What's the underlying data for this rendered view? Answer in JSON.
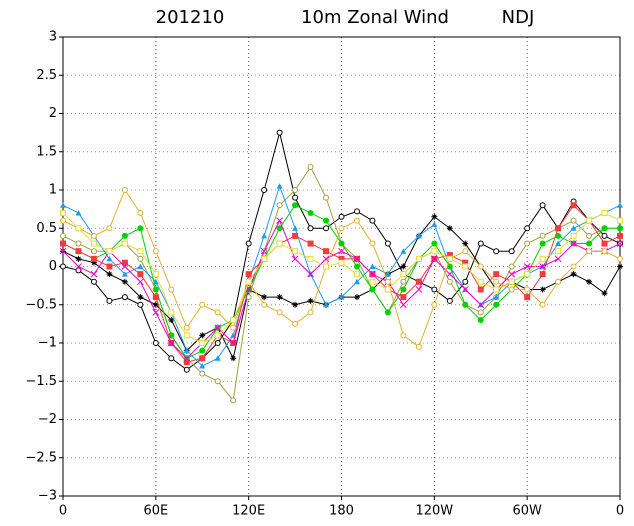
{
  "chart_data": {
    "type": "line",
    "title": "201210",
    "subtitle": "10m Zonal Wind",
    "season": "NDJ",
    "grid": true,
    "x": [
      0,
      10,
      20,
      30,
      40,
      50,
      60,
      70,
      80,
      90,
      100,
      110,
      120,
      130,
      140,
      150,
      160,
      170,
      180,
      190,
      200,
      210,
      220,
      230,
      240,
      250,
      260,
      270,
      280,
      290,
      300,
      310,
      320,
      330,
      340,
      350,
      360
    ],
    "xlim": [
      0,
      360
    ],
    "xticks": [
      0,
      {
        "value": 60,
        "label": "60E"
      },
      {
        "value": 120,
        "label": "120E"
      },
      180,
      {
        "value": 240,
        "label": "120W"
      },
      {
        "value": 300,
        "label": "60W"
      },
      {
        "value": 360,
        "label": "0"
      }
    ],
    "ylim": [
      -3,
      3
    ],
    "yticks": [
      {
        "value": -3,
        "label": "−3"
      },
      {
        "value": -2.5,
        "label": "−2.5"
      },
      {
        "value": -2,
        "label": "−2"
      },
      {
        "value": -1.5,
        "label": "−1.5"
      },
      {
        "value": -1,
        "label": "−1"
      },
      {
        "value": -0.5,
        "label": "−0.5"
      },
      0,
      0.5,
      1,
      1.5,
      2,
      2.5,
      3
    ],
    "series": [
      {
        "color": "#000000",
        "marker": "circle-open",
        "values": [
          0,
          -0.05,
          -0.2,
          -0.45,
          -0.4,
          -0.5,
          -1.0,
          -1.2,
          -1.35,
          -1.2,
          -1.0,
          -0.7,
          0.3,
          1.0,
          1.75,
          0.9,
          0.5,
          0.5,
          0.65,
          0.72,
          0.6,
          0.3,
          -0.1,
          -0.2,
          -0.3,
          -0.45,
          -0.2,
          0.3,
          0.2,
          0.2,
          0.5,
          0.8,
          0.5,
          0.85,
          0.6,
          0.4,
          0.3
        ]
      },
      {
        "color": "#000000",
        "marker": "star",
        "values": [
          0.2,
          0.1,
          0.05,
          -0.1,
          -0.2,
          -0.4,
          -0.5,
          -0.7,
          -1.1,
          -0.9,
          -0.8,
          -1.2,
          -0.3,
          -0.4,
          -0.4,
          -0.5,
          -0.45,
          -0.5,
          -0.4,
          -0.4,
          -0.3,
          -0.1,
          0,
          0.4,
          0.65,
          0.5,
          0.3,
          0,
          -0.3,
          -0.2,
          -0.3,
          -0.3,
          -0.2,
          -0.1,
          -0.2,
          -0.35,
          0
        ]
      },
      {
        "color": "#a0a040",
        "marker": "circle-open",
        "values": [
          0.4,
          0.3,
          0.2,
          0.2,
          0.3,
          0.1,
          -0.3,
          -0.9,
          -1.2,
          -1.4,
          -1.5,
          -1.75,
          -0.4,
          0.2,
          0.8,
          1.0,
          1.3,
          0.9,
          0.3,
          0.1,
          -0.3,
          -0.6,
          -0.2,
          0.1,
          0.2,
          -0.2,
          -0.5,
          -0.6,
          -0.4,
          0,
          0.3,
          0.4,
          0.5,
          0.6,
          0.4,
          0.5,
          0.5
        ]
      },
      {
        "color": "#1e9bf0",
        "marker": "triangle",
        "values": [
          0.8,
          0.7,
          0.4,
          0.1,
          -0.1,
          0,
          -0.2,
          -0.6,
          -1.1,
          -1.3,
          -1.2,
          -0.9,
          -0.2,
          0.4,
          1.05,
          0.5,
          -0.1,
          -0.5,
          -0.4,
          -0.2,
          0,
          -0.1,
          0.2,
          0.4,
          0.55,
          0,
          -0.3,
          -0.5,
          -0.4,
          -0.2,
          -0.1,
          0,
          0.3,
          0.5,
          0.6,
          0.7,
          0.8
        ]
      },
      {
        "color": "#00d200",
        "marker": "circle-filled",
        "values": [
          0.3,
          0.2,
          0.1,
          0.2,
          0.4,
          0.5,
          -0.3,
          -0.9,
          -1.2,
          -1.1,
          -0.8,
          -0.7,
          -0.3,
          0.1,
          0.5,
          0.8,
          0.7,
          0.6,
          0.3,
          0,
          -0.3,
          -0.6,
          -0.3,
          0.1,
          0.3,
          0,
          -0.5,
          -0.7,
          -0.5,
          -0.3,
          -0.1,
          0.3,
          0.4,
          0.3,
          0.3,
          0.5,
          0.5
        ]
      },
      {
        "color": "#f03c3c",
        "marker": "square-filled",
        "values": [
          0.3,
          0.2,
          0.1,
          0,
          0.05,
          -0.1,
          -0.4,
          -1.0,
          -1.25,
          -1.2,
          -0.9,
          -1.0,
          -0.1,
          0.1,
          0.3,
          0.4,
          0.3,
          0.2,
          0.1,
          0.1,
          -0.1,
          -0.3,
          -0.4,
          -0.2,
          0.1,
          0.15,
          0.05,
          -0.3,
          -0.1,
          -0.2,
          -0.4,
          -0.1,
          0.5,
          0.8,
          0.6,
          0.3,
          0.4
        ]
      },
      {
        "color": "#f000c8",
        "marker": "cross",
        "values": [
          0.2,
          0,
          -0.1,
          0.2,
          0,
          -0.2,
          -0.6,
          -1.0,
          -1.2,
          -1.0,
          -0.8,
          -1.0,
          -0.3,
          0.2,
          0.6,
          0.1,
          -0.1,
          0.1,
          0.2,
          0.1,
          -0.1,
          -0.2,
          -0.5,
          -0.3,
          0.1,
          -0.1,
          -0.3,
          -0.5,
          -0.3,
          -0.1,
          0,
          0,
          0.1,
          0.3,
          0.2,
          0.2,
          0.3
        ]
      },
      {
        "color": "#e6af2d",
        "marker": "circle-open",
        "values": [
          0.6,
          0.5,
          0.4,
          0.5,
          1.0,
          0.7,
          0.2,
          -0.3,
          -0.8,
          -0.5,
          -0.6,
          -0.8,
          -0.2,
          -0.5,
          -0.6,
          -0.75,
          -0.6,
          0,
          0.5,
          0.6,
          0.3,
          -0.2,
          -0.9,
          -1.05,
          -0.5,
          0.1,
          0.2,
          0,
          -0.2,
          -0.3,
          -0.3,
          -0.5,
          -0.2,
          0,
          0.2,
          0.2,
          0.1
        ]
      },
      {
        "color": "#e6dc32",
        "marker": "square-open",
        "values": [
          0.7,
          0.5,
          0.3,
          0.2,
          0.3,
          0.2,
          -0.1,
          -0.6,
          -0.9,
          -1.0,
          -0.9,
          -0.7,
          -0.2,
          0.1,
          0.3,
          0.2,
          0.1,
          0,
          0.05,
          -0.1,
          -0.2,
          -0.3,
          -0.1,
          0.1,
          0.2,
          0.1,
          0,
          -0.2,
          -0.3,
          -0.2,
          -0.1,
          0.1,
          0.2,
          0.4,
          0.6,
          0.7,
          0.6
        ]
      }
    ]
  }
}
